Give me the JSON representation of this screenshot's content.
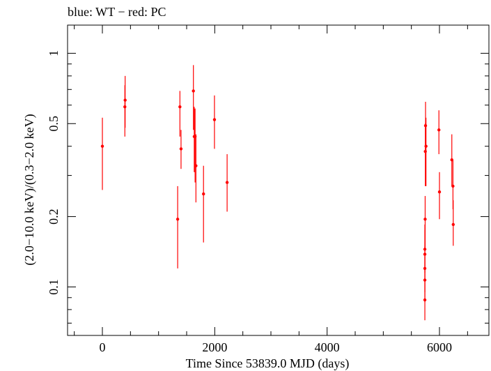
{
  "chart_data": {
    "type": "scatter",
    "title": "blue: WT − red: PC",
    "xlabel": "Time Since 53839.0 MJD (days)",
    "ylabel": "(2.0−10.0 keV)/(0.3−2.0 keV)",
    "x_scale": "linear",
    "y_scale": "log",
    "xlim": [
      -620,
      6880
    ],
    "ylim": [
      0.062,
      1.32
    ],
    "x_ticks": [
      0,
      2000,
      4000,
      6000
    ],
    "x_tick_labels": [
      "0",
      "2000",
      "4000",
      "6000"
    ],
    "y_ticks": [
      0.1,
      0.2,
      0.5,
      1
    ],
    "y_tick_labels": [
      "0.1",
      "0.2",
      "0.5",
      "1"
    ],
    "grid": false,
    "series": [
      {
        "color": "#ff0000",
        "points": [
          {
            "x": 0,
            "y": 0.4,
            "lo": 0.26,
            "hi": 0.53
          },
          {
            "x": 400,
            "y": 0.59,
            "lo": 0.44,
            "hi": 0.73
          },
          {
            "x": 405,
            "y": 0.63,
            "lo": 0.48,
            "hi": 0.8
          },
          {
            "x": 1340,
            "y": 0.195,
            "lo": 0.12,
            "hi": 0.27
          },
          {
            "x": 1380,
            "y": 0.59,
            "lo": 0.44,
            "hi": 0.69
          },
          {
            "x": 1400,
            "y": 0.39,
            "lo": 0.32,
            "hi": 0.47
          },
          {
            "x": 1620,
            "y": 0.69,
            "lo": 0.47,
            "hi": 0.89
          },
          {
            "x": 1635,
            "y": 0.44,
            "lo": 0.31,
            "hi": 0.59
          },
          {
            "x": 1650,
            "y": 0.44,
            "lo": 0.28,
            "hi": 0.58
          },
          {
            "x": 1665,
            "y": 0.33,
            "lo": 0.23,
            "hi": 0.45
          },
          {
            "x": 1800,
            "y": 0.25,
            "lo": 0.155,
            "hi": 0.33
          },
          {
            "x": 1995,
            "y": 0.52,
            "lo": 0.39,
            "hi": 0.66
          },
          {
            "x": 2220,
            "y": 0.28,
            "lo": 0.21,
            "hi": 0.37
          },
          {
            "x": 5740,
            "y": 0.088,
            "lo": 0.072,
            "hi": 0.11
          },
          {
            "x": 5740,
            "y": 0.107,
            "lo": 0.086,
            "hi": 0.135
          },
          {
            "x": 5740,
            "y": 0.12,
            "lo": 0.095,
            "hi": 0.15
          },
          {
            "x": 5740,
            "y": 0.138,
            "lo": 0.11,
            "hi": 0.175
          },
          {
            "x": 5740,
            "y": 0.145,
            "lo": 0.115,
            "hi": 0.185
          },
          {
            "x": 5745,
            "y": 0.195,
            "lo": 0.145,
            "hi": 0.245
          },
          {
            "x": 5748,
            "y": 0.38,
            "lo": 0.27,
            "hi": 0.5
          },
          {
            "x": 5752,
            "y": 0.49,
            "lo": 0.37,
            "hi": 0.62
          },
          {
            "x": 5760,
            "y": 0.4,
            "lo": 0.27,
            "hi": 0.53
          },
          {
            "x": 5990,
            "y": 0.47,
            "lo": 0.37,
            "hi": 0.57
          },
          {
            "x": 6000,
            "y": 0.255,
            "lo": 0.195,
            "hi": 0.31
          },
          {
            "x": 6220,
            "y": 0.35,
            "lo": 0.27,
            "hi": 0.45
          },
          {
            "x": 6240,
            "y": 0.27,
            "lo": 0.215,
            "hi": 0.35
          },
          {
            "x": 6245,
            "y": 0.185,
            "lo": 0.15,
            "hi": 0.235
          }
        ]
      }
    ]
  }
}
